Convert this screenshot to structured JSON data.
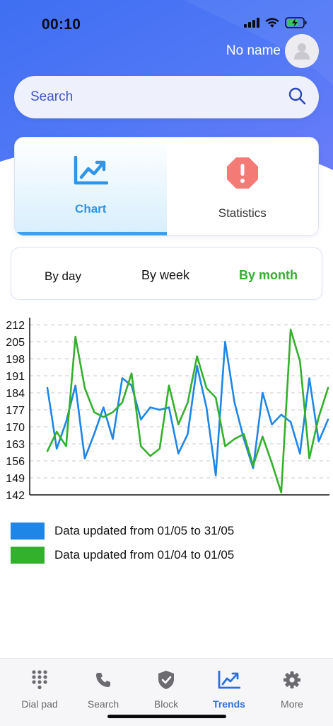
{
  "status_bar": {
    "time": "00:10"
  },
  "user": {
    "name": "No name"
  },
  "search": {
    "placeholder": "Search"
  },
  "mode_tabs": [
    {
      "label": "Chart",
      "active": true,
      "icon": "line-chart-icon"
    },
    {
      "label": "Statistics",
      "active": false,
      "icon": "alert-octagon-icon"
    }
  ],
  "period_tabs": [
    {
      "label": "By day",
      "active": false
    },
    {
      "label": "By week",
      "active": false
    },
    {
      "label": "By month",
      "active": true
    }
  ],
  "colors": {
    "accent": "#3aa0f3",
    "series_current": "#1e86e6",
    "series_previous": "#33b02c",
    "tab_active": "#2e6fe0"
  },
  "chart_data": {
    "type": "line",
    "y_ticks": [
      212,
      205,
      198,
      191,
      184,
      177,
      170,
      163,
      156,
      149,
      142
    ],
    "ylim": [
      142,
      212
    ],
    "grid": true,
    "series": [
      {
        "name": "Data updated from 01/05 to 31/05",
        "color": "#1e86e6",
        "values": [
          186,
          161,
          172,
          187,
          157,
          167,
          178,
          165,
          190,
          187,
          173,
          178,
          177,
          178,
          159,
          167,
          195,
          178,
          150,
          205,
          180,
          165,
          153,
          184,
          171,
          175,
          172,
          159,
          190,
          164,
          173
        ]
      },
      {
        "name": "Data updated from 01/04 to 01/05",
        "color": "#33b02c",
        "values": [
          160,
          168,
          162,
          207,
          186,
          176,
          174,
          176,
          180,
          192,
          162,
          158,
          161,
          187,
          171,
          180,
          199,
          186,
          182,
          162,
          165,
          167,
          154,
          166,
          155,
          143,
          210,
          197,
          157,
          174,
          186
        ]
      }
    ]
  },
  "legend": [
    {
      "label": "Data updated from 01/05 to 31/05",
      "color": "#1e86e6"
    },
    {
      "label": "Data updated from 01/04 to 01/05",
      "color": "#33b02c"
    }
  ],
  "tabbar": [
    {
      "label": "Dial pad",
      "icon": "dial-pad-icon",
      "active": false
    },
    {
      "label": "Search",
      "icon": "phone-icon",
      "active": false
    },
    {
      "label": "Block",
      "icon": "shield-check-icon",
      "active": false
    },
    {
      "label": "Trends",
      "icon": "trend-chart-icon",
      "active": true
    },
    {
      "label": "More",
      "icon": "gear-icon",
      "active": false
    }
  ]
}
